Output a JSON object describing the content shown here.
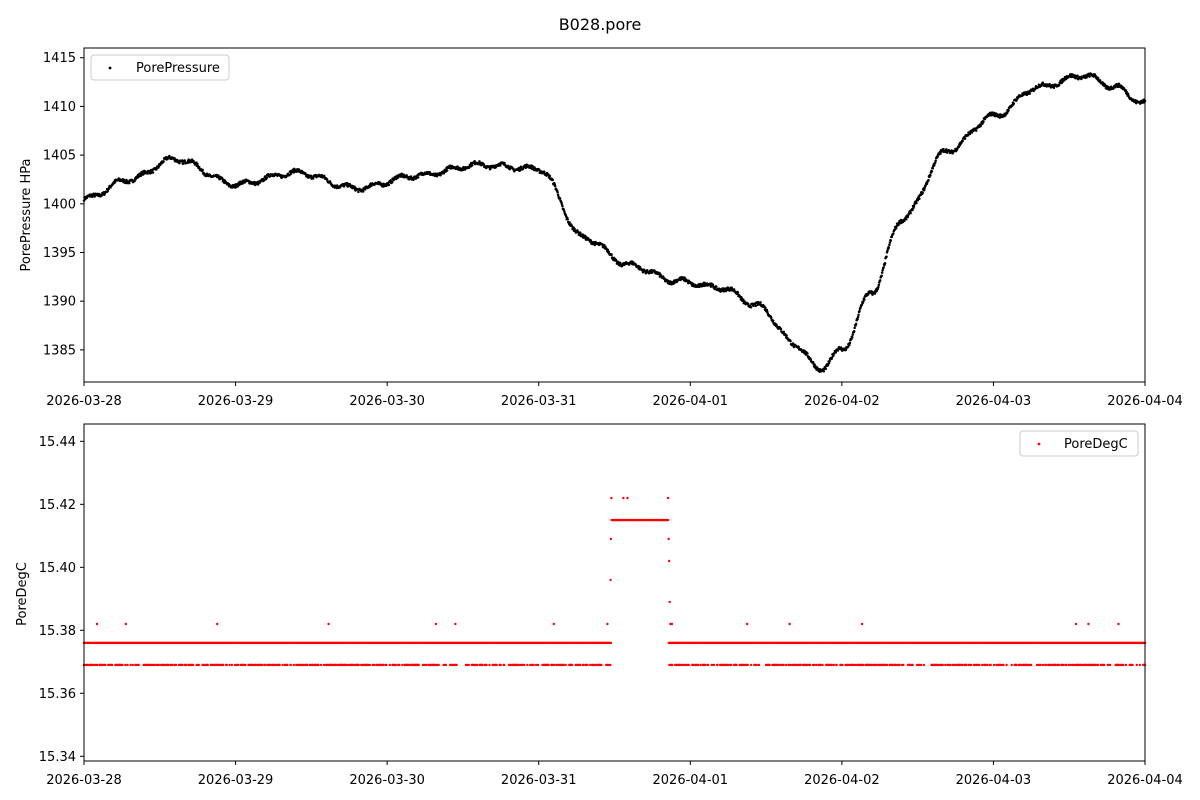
{
  "figure": {
    "title": "B028.pore"
  },
  "chart_data": [
    {
      "type": "scatter",
      "x_tick_labels": [
        "2026-03-28",
        "2026-03-29",
        "2026-03-30",
        "2026-03-31",
        "2026-04-01",
        "2026-04-02",
        "2026-04-03",
        "2026-04-04"
      ],
      "xlim": [
        "2026-03-28",
        "2026-04-04"
      ],
      "ylabel": "PorePressure HPa",
      "ylim": [
        1381.7,
        1416.0
      ],
      "y_ticks": [
        1385,
        1390,
        1395,
        1400,
        1405,
        1410,
        1415
      ],
      "legend_position": "upper-left",
      "series": [
        {
          "name": "PorePressure",
          "color": "#000000",
          "x_days": [
            0,
            0.3,
            0.6,
            1,
            1.4,
            1.8,
            2.2,
            2.6,
            3,
            3.3,
            3.6,
            3.9,
            4.2,
            4.45,
            4.7,
            4.85,
            5.0,
            5.2,
            5.4,
            5.7,
            6.0,
            6.3,
            6.6,
            6.8,
            7.0
          ],
          "y": [
            1400.5,
            1402.5,
            1404.6,
            1402.0,
            1403.2,
            1401.6,
            1402.9,
            1404.0,
            1403.6,
            1396.5,
            1393.7,
            1392.1,
            1391.4,
            1389.5,
            1385.5,
            1383.0,
            1385.0,
            1391.0,
            1398.5,
            1405.5,
            1409.0,
            1412.0,
            1413.2,
            1412.0,
            1410.3
          ],
          "x": [
            "2026-03-28T00:00",
            "2026-03-28T07:12",
            "2026-03-28T14:24",
            "2026-03-29T00:00",
            "2026-03-29T09:36",
            "2026-03-29T19:12",
            "2026-03-30T04:48",
            "2026-03-30T14:24",
            "2026-03-31T00:00",
            "2026-03-31T07:12",
            "2026-03-31T14:24",
            "2026-03-31T21:36",
            "2026-04-01T04:48",
            "2026-04-01T10:48",
            "2026-04-01T16:48",
            "2026-04-01T20:24",
            "2026-04-02T00:00",
            "2026-04-02T04:48",
            "2026-04-02T09:36",
            "2026-04-02T16:48",
            "2026-04-03T00:00",
            "2026-04-03T07:12",
            "2026-04-03T14:24",
            "2026-04-03T19:12",
            "2026-04-04T00:00"
          ]
        }
      ]
    },
    {
      "type": "scatter",
      "x_tick_labels": [
        "2026-03-28",
        "2026-03-29",
        "2026-03-30",
        "2026-03-31",
        "2026-04-01",
        "2026-04-02",
        "2026-04-03",
        "2026-04-04"
      ],
      "xlim": [
        "2026-03-28",
        "2026-04-04"
      ],
      "ylabel": "PoreDegC",
      "ylim": [
        15.3385,
        15.4455
      ],
      "y_tick_labels": [
        "15.34",
        "15.36",
        "15.38",
        "15.40",
        "15.42",
        "15.44"
      ],
      "legend_position": "upper-right",
      "series": [
        {
          "name": "PoreDegC",
          "color": "#ff0000",
          "baseline_low": 15.369,
          "baseline_high": 15.376,
          "outlier_high": 15.382,
          "plateau": 15.415,
          "plateau_high": 15.422,
          "plateau_start": "2026-03-31T11:30",
          "plateau_end": "2026-03-31T20:30"
        }
      ]
    }
  ]
}
